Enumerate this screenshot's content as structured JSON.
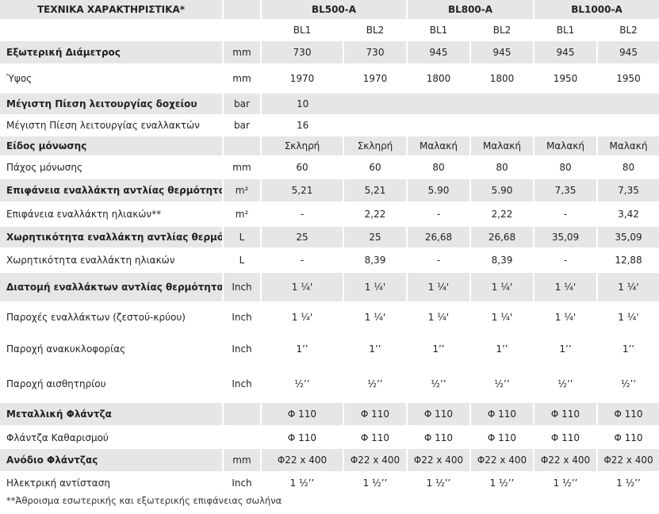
{
  "title": "ΤΕΧΝΙΚΑ ΧΑΡΑΚΤΗΡΙΣΤΙΚΑ*",
  "models": [
    "BL500-A",
    "BL800-A",
    "BL1000-A"
  ],
  "variants": [
    "BL1",
    "BL2",
    "BL1",
    "BL2",
    "BL1",
    "BL2"
  ],
  "rows": [
    {
      "label": "Εξωτερική Διάμετρος",
      "unit": "mm",
      "values": [
        "730",
        "730",
        "945",
        "945",
        "945",
        "945"
      ]
    },
    {
      "label": "Ύψος",
      "unit": "mm",
      "values": [
        "1970",
        "1970",
        "1800",
        "1800",
        "1950",
        "1950"
      ]
    },
    {
      "label": "Μέγιστη Πίεση λειτουργίας δοχείου",
      "unit": "bar",
      "values": [
        "10"
      ],
      "span": true
    },
    {
      "label": "Μέγιστη Πίεση λειτουργίας εναλλακτών",
      "unit": "bar",
      "values": [
        "16"
      ],
      "span": true
    },
    {
      "label": "Είδος μόνωσης",
      "unit": "",
      "values": [
        "Σκληρή",
        "Σκληρή",
        "Μαλακή",
        "Μαλακή",
        "Μαλακή",
        "Μαλακή"
      ]
    },
    {
      "label": "Πάχος μόνωσης",
      "unit": "mm",
      "values": [
        "60",
        "60",
        "80",
        "80",
        "80",
        "80"
      ]
    },
    {
      "label": "Επιφάνεια εναλλάκτη αντλίας θερμότητας**",
      "unit": "m²",
      "values": [
        "5,21",
        "5,21",
        "5.90",
        "5.90",
        "7,35",
        "7,35"
      ]
    },
    {
      "label": "Επιφάνεια εναλλάκτη ηλιακών**",
      "unit": "m²",
      "values": [
        "-",
        "2,22",
        "-",
        "2,22",
        "-",
        "3,42"
      ]
    },
    {
      "label": "Χωρητικότητα εναλλάκτη αντλίας θερμότητας",
      "unit": "L",
      "values": [
        "25",
        "25",
        "26,68",
        "26,68",
        "35,09",
        "35,09"
      ]
    },
    {
      "label": "Χωρητικότητα εναλλάκτη ηλιακών",
      "unit": "L",
      "values": [
        "-",
        "8,39",
        "-",
        "8,39",
        "-",
        "12,88"
      ]
    },
    {
      "label": "Διατομή εναλλάκτων αντλίας θερμότητας",
      "unit": "Inch",
      "values": [
        "1 ¼'",
        "1 ¼'",
        "1 ¼'",
        "1 ¼'",
        "1 ¼'",
        "1 ¼'"
      ]
    },
    {
      "label": "Παροχές εναλλάκτων (ζεστού-κρύου)",
      "unit": "Inch",
      "values": [
        "1 ¼'",
        "1 ¼'",
        "1 ¼'",
        "1 ¼'",
        "1 ¼'",
        "1 ¼'"
      ]
    },
    {
      "label": "Παροχή ανακυκλοφορίας",
      "unit": "Inch",
      "values": [
        "1’’",
        "1’’",
        "1’’",
        "1’’",
        "1’’",
        "1’’"
      ]
    },
    {
      "label": "Παροχή αισθητηρίου",
      "unit": "Inch",
      "values": [
        "½’’",
        "½’’",
        "½’’",
        "½’’",
        "½’’",
        "½’’"
      ]
    },
    {
      "label": "Μεταλλική Φλάντζα",
      "unit": "",
      "values": [
        "Φ 110",
        "Φ 110",
        "Φ 110",
        "Φ 110",
        "Φ 110",
        "Φ 110"
      ]
    },
    {
      "label": "Φλάντζα Καθαρισμού",
      "unit": "",
      "values": [
        "Φ 110",
        "Φ 110",
        "Φ 110",
        "Φ 110",
        "Φ 110",
        "Φ 110"
      ]
    },
    {
      "label": "Ανόδιο Φλάντζας",
      "unit": "mm",
      "values": [
        "Φ22 x 400",
        "Φ22 x 400",
        "Φ22 x 400",
        "Φ22 x 400",
        "Φ22 x 400",
        "Φ22 x 400"
      ]
    },
    {
      "label": "Ηλεκτρική αντίσταση",
      "unit": "Inch",
      "values": [
        "1 ½’’",
        "1 ½’’",
        "1 ½’’",
        "1 ½’’",
        "1 ½’’",
        "1 ½’’"
      ]
    }
  ],
  "footnote": "**Άθροισμα εσωτερικής και εξωτερικής επιφάνειας σωλήνα"
}
